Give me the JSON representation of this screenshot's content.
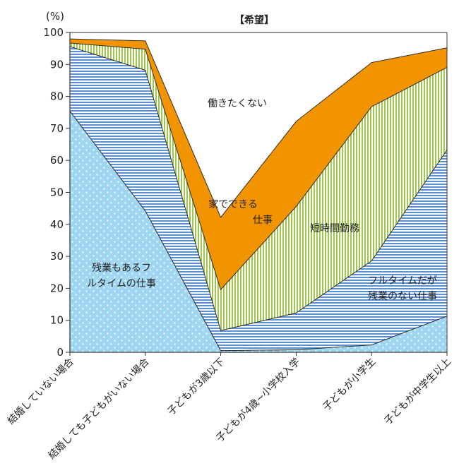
{
  "chart_data": {
    "type": "area",
    "stacked": true,
    "title": "【希望】",
    "ylabel": "(%)",
    "ylim": [
      0,
      100
    ],
    "yticks": [
      0,
      10,
      20,
      30,
      40,
      50,
      60,
      70,
      80,
      90,
      100
    ],
    "categories": [
      "結婚していない場合",
      "結婚しても子どもがいない場合",
      "子どもが3歳以下",
      "子どもが4歳~小学校入学",
      "子どもが小学生",
      "子どもが中学生以上"
    ],
    "series": [
      {
        "name": "残業もあるフルタイムの仕事",
        "label_lines": [
          "残業もあるフ",
          "ルタイムの仕事"
        ],
        "color": "#a8d8f0",
        "values": [
          75.4,
          44.2,
          0.5,
          0.8,
          2.3,
          11.3
        ]
      },
      {
        "name": "フルタイムだが残業のない仕事",
        "label_lines": [
          "フルタイムだが",
          "残業のない仕事"
        ],
        "color": "#7aaadd",
        "values": [
          20.2,
          44.0,
          6.3,
          11.5,
          26.3,
          52.0
        ]
      },
      {
        "name": "短時間勤務",
        "label_lines": [
          "短時間勤務"
        ],
        "color": "#b9d77a",
        "values": [
          1.1,
          6.6,
          12.8,
          33.3,
          48.2,
          25.8
        ]
      },
      {
        "name": "家でできる仕事",
        "label_lines": [
          "家でできる",
          "仕事"
        ],
        "color": "#f29400",
        "values": [
          1.3,
          2.6,
          22.6,
          26.6,
          13.8,
          6.1
        ]
      },
      {
        "name": "働きたくない",
        "label_lines": [
          "働きたくない"
        ],
        "color": "#ffffff",
        "values": [
          2.0,
          2.6,
          57.8,
          27.8,
          9.4,
          4.8
        ]
      }
    ]
  }
}
